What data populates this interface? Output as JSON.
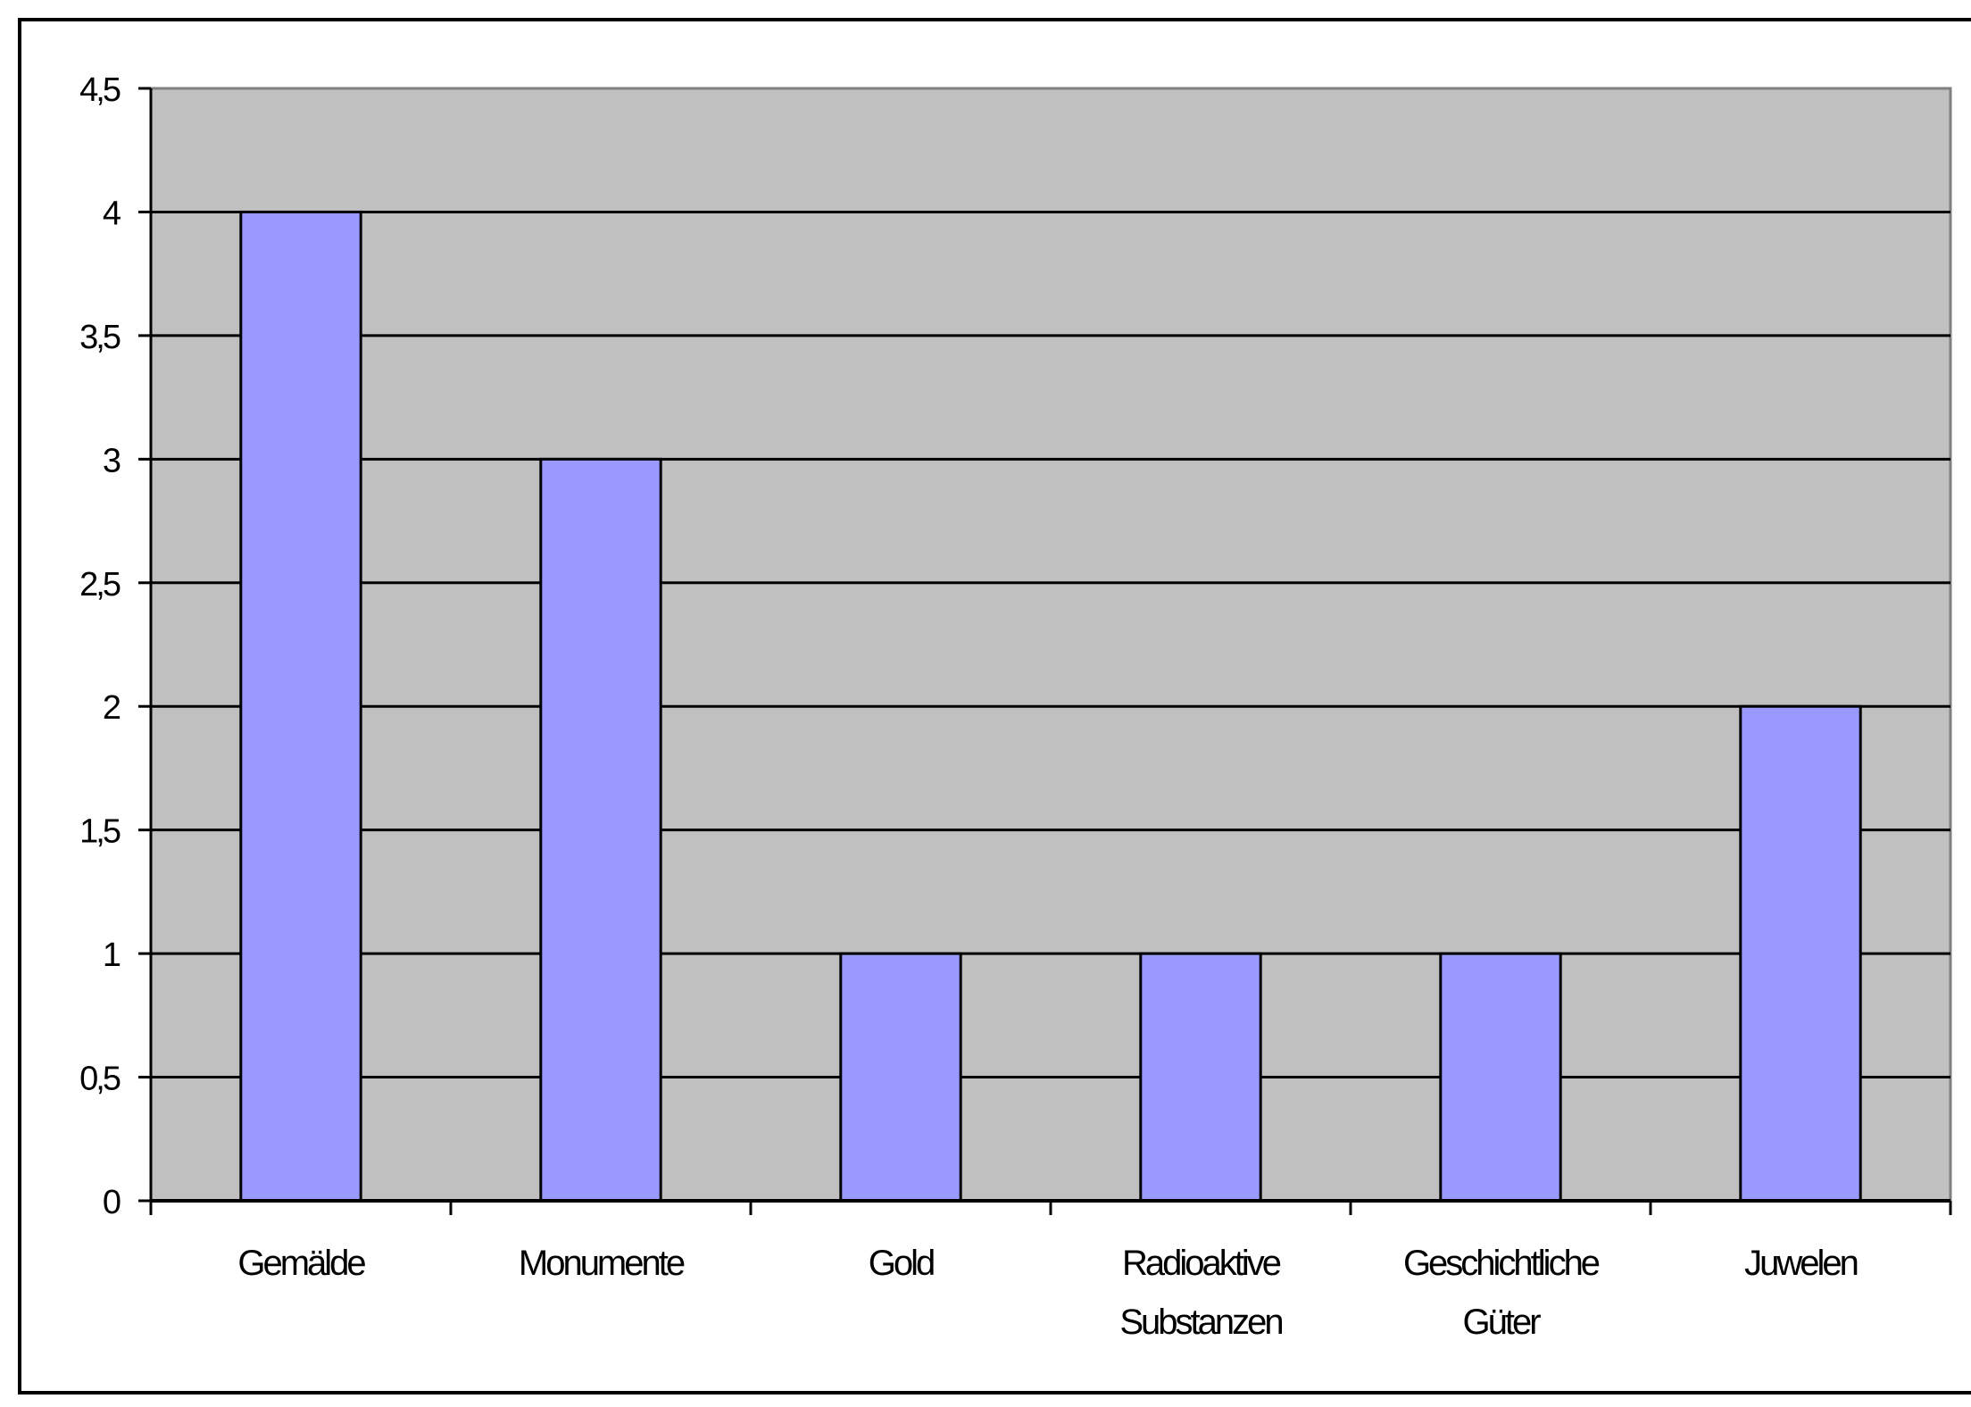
{
  "chart_data": {
    "type": "bar",
    "title": "",
    "xlabel": "",
    "ylabel": "",
    "categories": [
      [
        "Gemälde"
      ],
      [
        "Monumente"
      ],
      [
        "Gold"
      ],
      [
        "Radioaktive",
        "Substanzen"
      ],
      [
        "Geschichtliche",
        "Güter"
      ],
      [
        "Juwelen"
      ]
    ],
    "values": [
      4,
      3,
      1,
      1,
      1,
      2
    ],
    "ylim": [
      0,
      4.5
    ],
    "yticks": [
      0,
      0.5,
      1,
      1.5,
      2,
      2.5,
      3,
      3.5,
      4,
      4.5
    ],
    "ytick_labels": [
      "0",
      "0,5",
      "1",
      "1,5",
      "2",
      "2,5",
      "3",
      "3,5",
      "4",
      "4,5"
    ],
    "grid": true,
    "legend": "none",
    "colors": {
      "bar": "#9999ff",
      "plot_background": "#c0c0c0",
      "gridline": "#000000",
      "page_background": "#ffffff"
    }
  }
}
